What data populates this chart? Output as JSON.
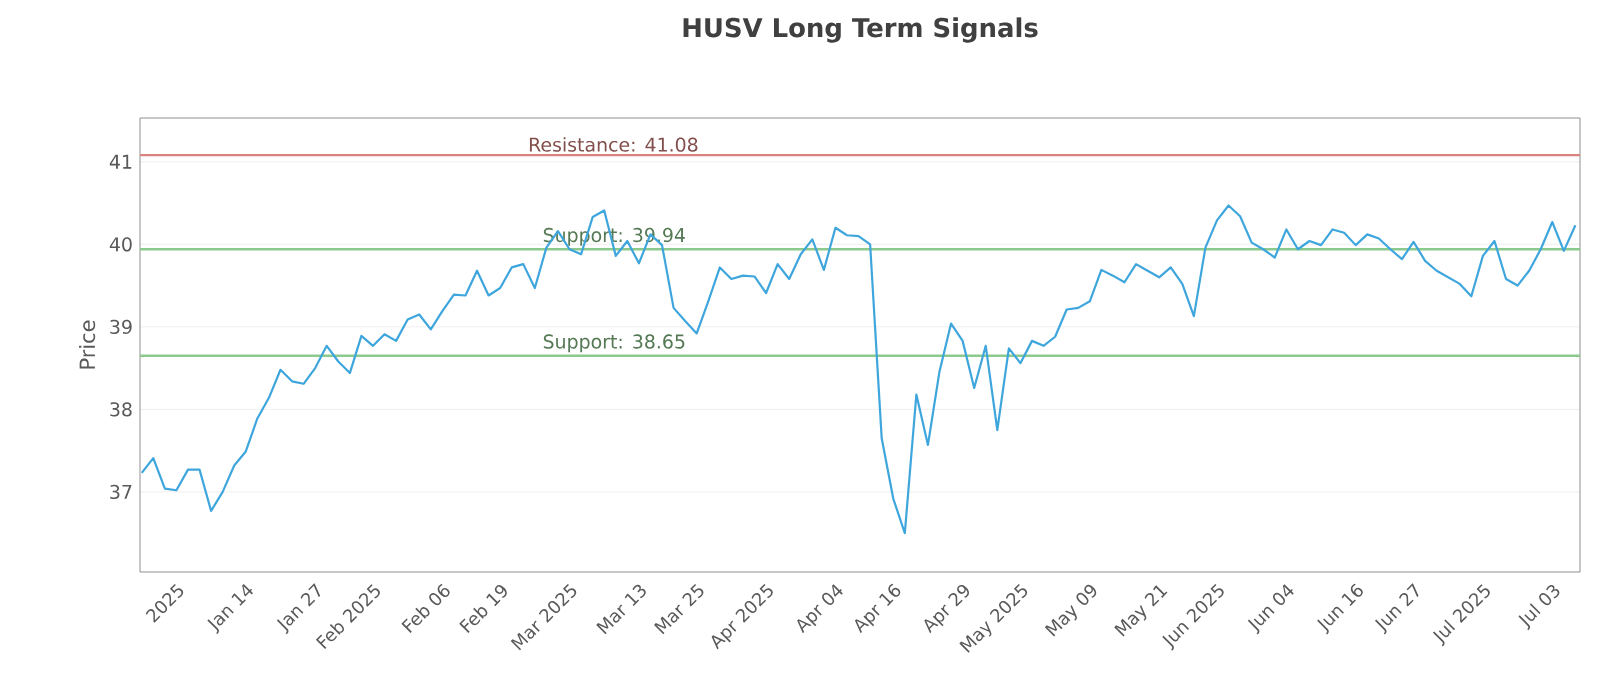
{
  "chart_data": {
    "type": "line",
    "title": "HUSV Long Term Signals",
    "ylabel": "Price",
    "categories": [
      null,
      null,
      null,
      "2025",
      null,
      null,
      null,
      null,
      null,
      "Jan 14",
      null,
      null,
      null,
      null,
      null,
      "Jan 27",
      null,
      null,
      null,
      null,
      "Feb 2025",
      null,
      null,
      null,
      null,
      null,
      "Feb 06",
      null,
      null,
      null,
      null,
      "Feb 19",
      null,
      null,
      null,
      null,
      null,
      "Mar 2025",
      null,
      null,
      null,
      null,
      null,
      "Mar 13",
      null,
      null,
      null,
      null,
      "Mar 25",
      null,
      null,
      null,
      null,
      null,
      "Apr 2025",
      null,
      null,
      null,
      null,
      null,
      "Apr 04",
      null,
      null,
      null,
      null,
      "Apr 16",
      null,
      null,
      null,
      null,
      null,
      "Apr 29",
      null,
      null,
      null,
      null,
      "May 2025",
      null,
      null,
      null,
      null,
      null,
      "May 09",
      null,
      null,
      null,
      null,
      null,
      "May 21",
      null,
      null,
      null,
      null,
      "Jun 2025",
      null,
      null,
      null,
      null,
      null,
      "Jun 04",
      null,
      null,
      null,
      null,
      null,
      "Jun 16",
      null,
      null,
      null,
      null,
      "Jun 27",
      null,
      null,
      null,
      null,
      null,
      "Jul 2025",
      null,
      null,
      null,
      null,
      null,
      "Jul 03",
      null,
      null
    ],
    "series": [
      {
        "color": "#3ea6dc",
        "values": [
          37.23,
          37.41,
          37.04,
          37.02,
          37.27,
          37.27,
          36.77,
          37.0,
          37.32,
          37.49,
          37.89,
          38.14,
          38.48,
          38.34,
          38.31,
          38.5,
          38.77,
          38.58,
          38.44,
          38.89,
          38.77,
          38.91,
          38.83,
          39.09,
          39.15,
          38.97,
          39.19,
          39.39,
          39.38,
          39.68,
          39.38,
          39.47,
          39.72,
          39.76,
          39.47,
          39.96,
          40.16,
          39.94,
          39.88,
          40.33,
          40.41,
          39.86,
          40.04,
          39.77,
          40.12,
          39.99,
          39.23,
          39.07,
          38.92,
          39.31,
          39.72,
          39.58,
          39.62,
          39.61,
          39.41,
          39.76,
          39.58,
          39.88,
          40.06,
          39.69,
          40.2,
          40.11,
          40.1,
          40.0,
          37.65,
          36.92,
          36.5,
          38.18,
          37.57,
          38.46,
          39.04,
          38.83,
          38.26,
          38.77,
          37.75,
          38.74,
          38.56,
          38.83,
          38.77,
          38.88,
          39.21,
          39.23,
          39.31,
          39.69,
          39.62,
          39.54,
          39.76,
          39.68,
          39.6,
          39.72,
          39.52,
          39.13,
          39.96,
          40.29,
          40.47,
          40.34,
          40.02,
          39.94,
          39.84,
          40.18,
          39.94,
          40.04,
          39.99,
          40.18,
          40.14,
          39.99,
          40.12,
          40.07,
          39.94,
          39.82,
          40.03,
          39.8,
          39.68,
          39.6,
          39.52,
          39.37,
          39.86,
          40.04,
          39.58,
          39.5,
          39.68,
          39.94,
          40.27,
          39.92,
          40.23
        ]
      }
    ],
    "ylim": [
      36.03,
      41.53
    ],
    "yticks": [
      37,
      38,
      39,
      40,
      41
    ],
    "grid": "y",
    "ref_lines": [
      {
        "axis": "y",
        "value": 41.08,
        "label": "Resistance: 41.08",
        "color": "#d9827f"
      },
      {
        "axis": "y",
        "value": 39.94,
        "label": "Support: 39.94",
        "color": "#8cc98c"
      },
      {
        "axis": "y",
        "value": 38.65,
        "label": "Support: 38.65",
        "color": "#8cc98c"
      }
    ]
  }
}
